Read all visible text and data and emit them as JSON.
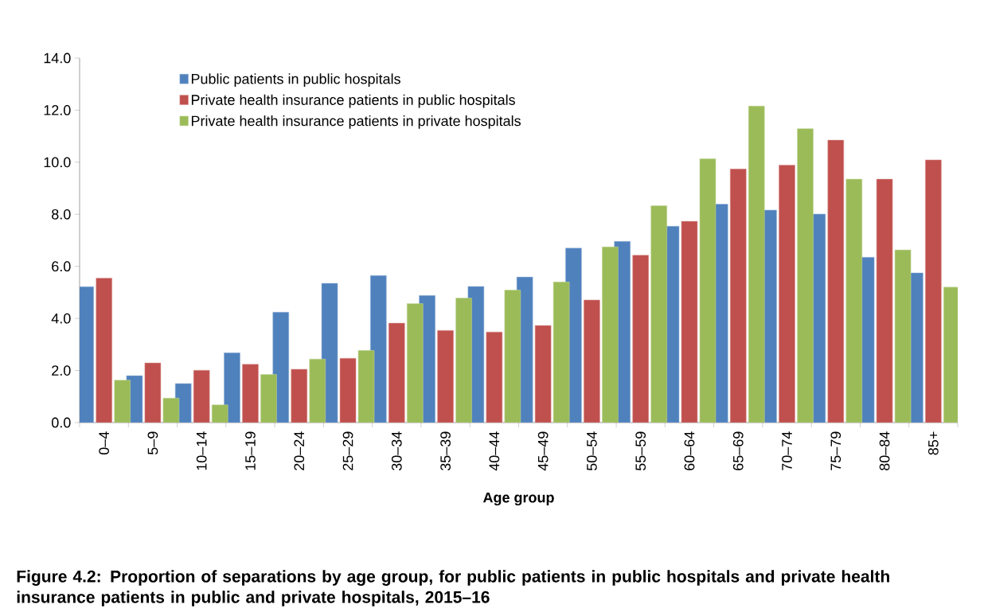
{
  "chart_data": {
    "type": "bar",
    "title": "Figure 4.2: Proportion of separations by age group, for public patients in public hospitals and private health insurance patients in public and private hospitals, 2015–16",
    "xlabel": "Age group",
    "categories": [
      "0–4",
      "5–9",
      "10–14",
      "15–19",
      "20–24",
      "25–29",
      "30–34",
      "35–39",
      "40–44",
      "45–49",
      "50–54",
      "55–59",
      "60–64",
      "65–69",
      "70–74",
      "75–79",
      "80–84",
      "85+"
    ],
    "series": [
      {
        "name": "Public patients in public hospitals",
        "color": "#4f81bd",
        "values": [
          5.22,
          1.8,
          1.5,
          2.68,
          4.24,
          5.35,
          5.65,
          4.88,
          5.23,
          5.59,
          6.7,
          6.96,
          7.54,
          8.39,
          8.16,
          8.01,
          6.35,
          5.75
        ]
      },
      {
        "name": "Private health insurance patients in public hospitals",
        "color": "#c0504d",
        "values": [
          5.55,
          2.29,
          2.01,
          2.24,
          2.05,
          2.47,
          3.82,
          3.54,
          3.48,
          3.73,
          4.71,
          6.43,
          7.73,
          9.74,
          9.89,
          10.85,
          9.35,
          10.09
        ]
      },
      {
        "name": "Private health insurance patients in private hospitals",
        "color": "#9bbb59",
        "values": [
          1.63,
          0.94,
          0.68,
          1.85,
          2.44,
          2.77,
          4.57,
          4.78,
          5.09,
          5.4,
          6.75,
          8.33,
          10.13,
          12.16,
          11.29,
          9.35,
          6.63,
          5.2
        ]
      }
    ],
    "ylim": [
      0,
      14
    ],
    "yticks": [
      {
        "value": 0,
        "label": "0.0"
      },
      {
        "value": 2,
        "label": "2.0"
      },
      {
        "value": 4,
        "label": "4.0"
      },
      {
        "value": 6,
        "label": "6.0"
      },
      {
        "value": 8,
        "label": "8.0"
      },
      {
        "value": 10,
        "label": "10.0"
      },
      {
        "value": 12,
        "label": "12.0"
      },
      {
        "value": 14,
        "label": "14.0"
      }
    ],
    "grid": false,
    "legend": "top left"
  }
}
